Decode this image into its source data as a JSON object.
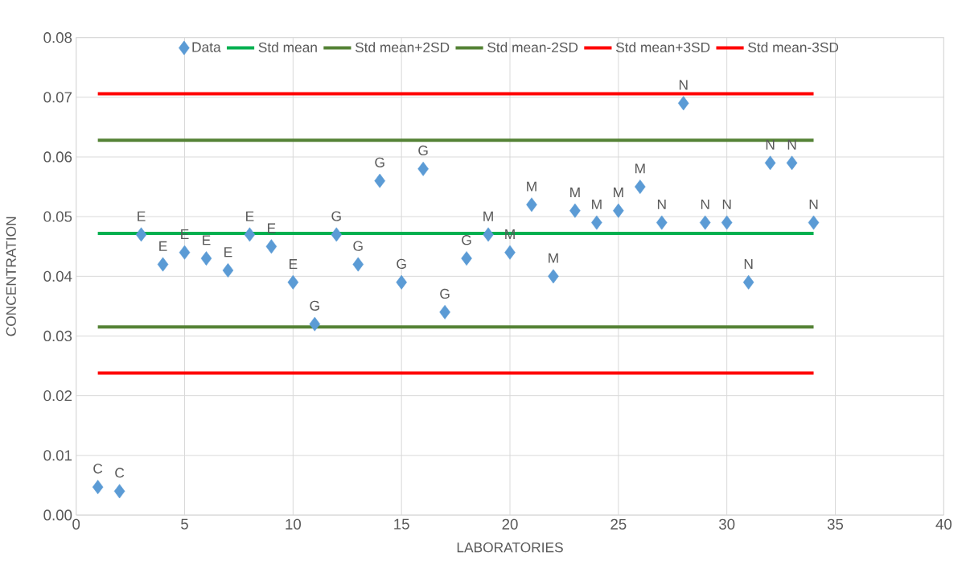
{
  "chart_data": {
    "type": "scatter",
    "xlabel": "LABORATORIES",
    "ylabel": "CONCENTRATION",
    "xlim": [
      0,
      40
    ],
    "xticks": [
      0,
      5,
      10,
      15,
      20,
      25,
      30,
      35,
      40
    ],
    "ylim": [
      0,
      0.08
    ],
    "yticks": [
      {
        "value": 0,
        "label": "0.00"
      },
      {
        "value": 0.01,
        "label": "0.01"
      },
      {
        "value": 0.02,
        "label": "0.02"
      },
      {
        "value": 0.03,
        "label": "0.03"
      },
      {
        "value": 0.04,
        "label": "0.04"
      },
      {
        "value": 0.05,
        "label": "0.05"
      },
      {
        "value": 0.06,
        "label": "0.06"
      },
      {
        "value": 0.07,
        "label": "0.07"
      },
      {
        "value": 0.08,
        "label": "0.08"
      }
    ],
    "grid": true,
    "legend": "top",
    "series": [
      {
        "name": "Data",
        "marker": "diamond",
        "color": "#5b9bd5",
        "x": [
          1,
          2,
          3,
          4,
          5,
          6,
          7,
          8,
          9,
          10,
          11,
          12,
          13,
          14,
          15,
          16,
          17,
          18,
          19,
          20,
          21,
          22,
          23,
          24,
          25,
          26,
          27,
          28,
          29,
          30,
          31,
          32,
          33,
          34
        ],
        "values": [
          0.0047,
          0.004,
          0.047,
          0.042,
          0.044,
          0.043,
          0.041,
          0.047,
          0.045,
          0.039,
          0.032,
          0.047,
          0.042,
          0.056,
          0.039,
          0.058,
          0.034,
          0.043,
          0.047,
          0.044,
          0.052,
          0.04,
          0.051,
          0.049,
          0.051,
          0.055,
          0.049,
          0.069,
          0.049,
          0.049,
          0.039,
          0.059,
          0.059,
          0.049
        ]
      },
      {
        "name": "Std mean",
        "type": "line",
        "color": "#00b050",
        "x": [
          1,
          34
        ],
        "values": [
          0.0472,
          0.0472
        ]
      },
      {
        "name": "Std mean+2SD",
        "type": "line",
        "color": "#548235",
        "x": [
          1,
          34
        ],
        "values": [
          0.0628,
          0.0628
        ]
      },
      {
        "name": "Std mean-2SD",
        "type": "line",
        "color": "#548235",
        "x": [
          1,
          34
        ],
        "values": [
          0.0315,
          0.0315
        ]
      },
      {
        "name": "Std mean+3SD",
        "type": "line",
        "color": "#ff0000",
        "x": [
          1,
          34
        ],
        "values": [
          0.0706,
          0.0706
        ]
      },
      {
        "name": "Std mean-3SD",
        "type": "line",
        "color": "#ff0000",
        "x": [
          1,
          34
        ],
        "values": [
          0.0238,
          0.0238
        ]
      }
    ],
    "annotations": [
      {
        "text": "C",
        "x": 1,
        "y": 0.0047
      },
      {
        "text": "C",
        "x": 2,
        "y": 0.004
      },
      {
        "text": "E",
        "x": 3,
        "y": 0.047
      },
      {
        "text": "E",
        "x": 4,
        "y": 0.042
      },
      {
        "text": "E",
        "x": 5,
        "y": 0.044
      },
      {
        "text": "E",
        "x": 6,
        "y": 0.043
      },
      {
        "text": "E",
        "x": 7,
        "y": 0.041
      },
      {
        "text": "E",
        "x": 8,
        "y": 0.047
      },
      {
        "text": "E",
        "x": 9,
        "y": 0.045
      },
      {
        "text": "E",
        "x": 10,
        "y": 0.039
      },
      {
        "text": "G",
        "x": 11,
        "y": 0.032
      },
      {
        "text": "G",
        "x": 12,
        "y": 0.047
      },
      {
        "text": "G",
        "x": 13,
        "y": 0.042
      },
      {
        "text": "G",
        "x": 14,
        "y": 0.056
      },
      {
        "text": "G",
        "x": 15,
        "y": 0.039
      },
      {
        "text": "G",
        "x": 16,
        "y": 0.058
      },
      {
        "text": "G",
        "x": 17,
        "y": 0.034
      },
      {
        "text": "G",
        "x": 18,
        "y": 0.043
      },
      {
        "text": "M",
        "x": 19,
        "y": 0.047
      },
      {
        "text": "M",
        "x": 20,
        "y": 0.044
      },
      {
        "text": "M",
        "x": 21,
        "y": 0.052
      },
      {
        "text": "M",
        "x": 22,
        "y": 0.04
      },
      {
        "text": "M",
        "x": 23,
        "y": 0.051
      },
      {
        "text": "M",
        "x": 24,
        "y": 0.049
      },
      {
        "text": "M",
        "x": 25,
        "y": 0.051
      },
      {
        "text": "M",
        "x": 26,
        "y": 0.055
      },
      {
        "text": "N",
        "x": 27,
        "y": 0.049
      },
      {
        "text": "N",
        "x": 28,
        "y": 0.069
      },
      {
        "text": "N",
        "x": 29,
        "y": 0.049
      },
      {
        "text": "N",
        "x": 30,
        "y": 0.049
      },
      {
        "text": "N",
        "x": 31,
        "y": 0.039
      },
      {
        "text": "N",
        "x": 32,
        "y": 0.059
      },
      {
        "text": "N",
        "x": 33,
        "y": 0.059
      },
      {
        "text": "N",
        "x": 34,
        "y": 0.049
      }
    ]
  }
}
